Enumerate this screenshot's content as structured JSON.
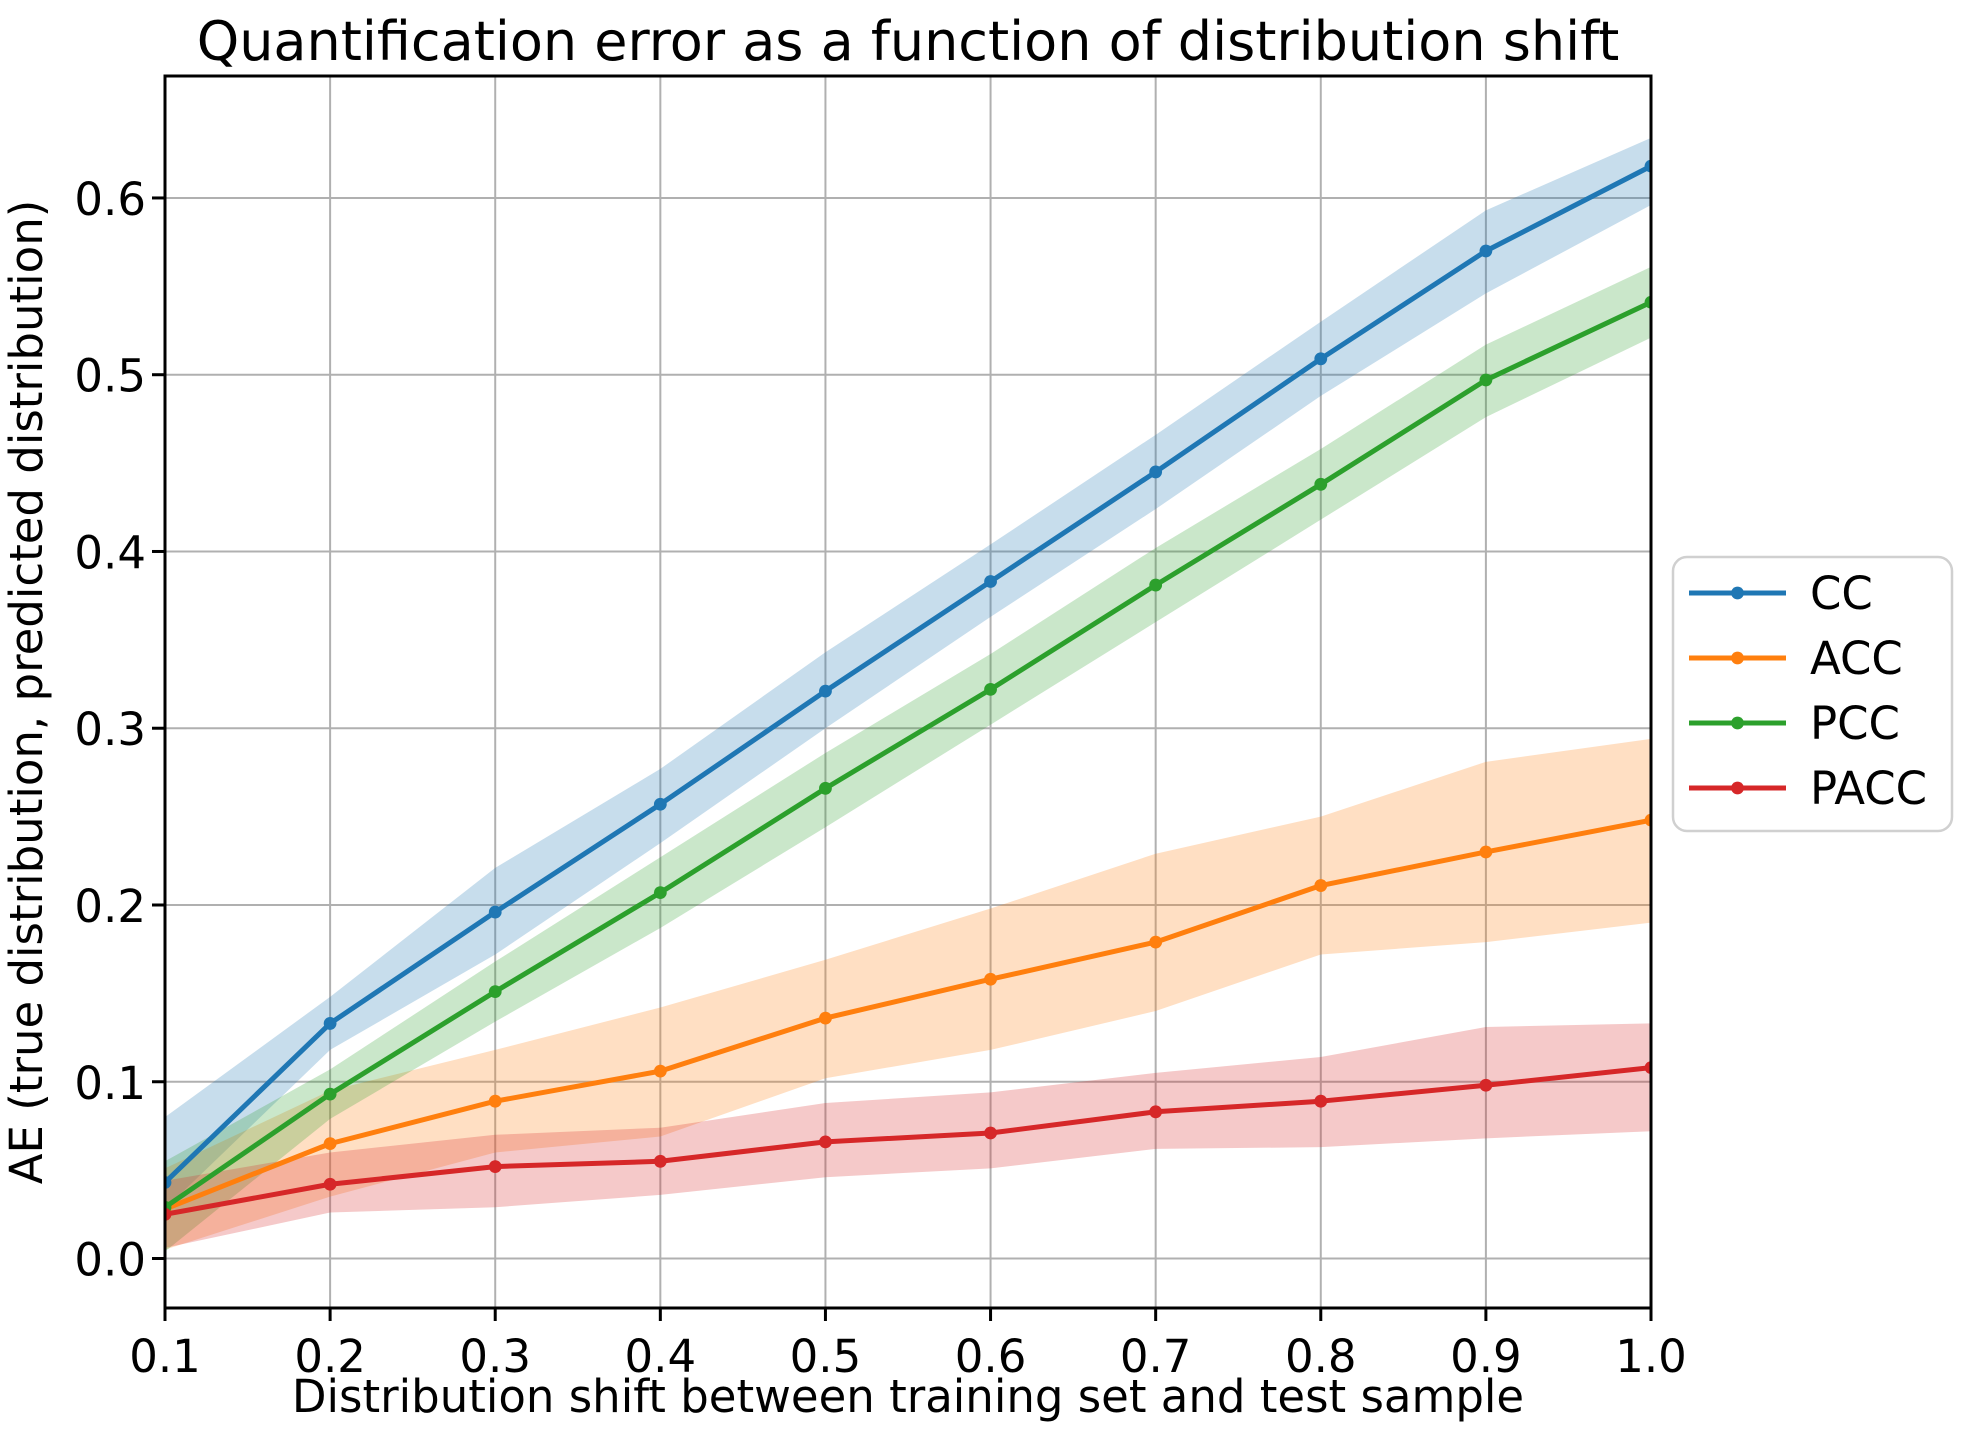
{
  "figure": {
    "title": "Quantification error as a function of distribution shift",
    "xlabel": "Distribution shift between training set and test sample",
    "ylabel": "AE (true distribution, predicted distribution)"
  },
  "chart_data": {
    "type": "line",
    "title": "Quantification error as a function of distribution shift",
    "xlabel": "Distribution shift between training set and test sample",
    "ylabel": "AE (true distribution, predicted distribution)",
    "grid": true,
    "grid_color": "#b0b0b0",
    "background": "#ffffff",
    "band_alpha": 0.25,
    "x": [
      0.1,
      0.2,
      0.3,
      0.4,
      0.5,
      0.6,
      0.7,
      0.8,
      0.9,
      1.0
    ],
    "x_tick_labels": [
      "0.1",
      "0.2",
      "0.3",
      "0.4",
      "0.5",
      "0.6",
      "0.7",
      "0.8",
      "0.9",
      "1.0"
    ],
    "y_ticks": [
      0.0,
      0.1,
      0.2,
      0.3,
      0.4,
      0.5,
      0.6
    ],
    "y_tick_labels": [
      "0.0",
      "0.1",
      "0.2",
      "0.3",
      "0.4",
      "0.5",
      "0.6"
    ],
    "xlim": [
      0.1,
      1.0
    ],
    "ylim": [
      -0.028,
      0.669
    ],
    "legend": {
      "position": "center-right-outside",
      "entries": [
        "CC",
        "ACC",
        "PCC",
        "PACC"
      ],
      "border_color": "#d0d0d0",
      "background": "#ffffff"
    },
    "series": [
      {
        "name": "CC",
        "color": "#1f77b4",
        "values": [
          0.043,
          0.133,
          0.196,
          0.257,
          0.321,
          0.383,
          0.445,
          0.509,
          0.57,
          0.618
        ],
        "band_lower": [
          0.028,
          0.118,
          0.172,
          0.235,
          0.3,
          0.363,
          0.424,
          0.488,
          0.546,
          0.596
        ],
        "band_upper": [
          0.08,
          0.148,
          0.221,
          0.277,
          0.343,
          0.404,
          0.466,
          0.53,
          0.593,
          0.634
        ]
      },
      {
        "name": "ACC",
        "color": "#ff7f0e",
        "values": [
          0.028,
          0.065,
          0.089,
          0.106,
          0.136,
          0.158,
          0.179,
          0.211,
          0.23,
          0.248
        ],
        "band_lower": [
          0.005,
          0.035,
          0.06,
          0.069,
          0.102,
          0.118,
          0.14,
          0.172,
          0.179,
          0.19
        ],
        "band_upper": [
          0.051,
          0.095,
          0.118,
          0.142,
          0.169,
          0.198,
          0.229,
          0.25,
          0.281,
          0.294
        ]
      },
      {
        "name": "PCC",
        "color": "#2ca02c",
        "values": [
          0.029,
          0.093,
          0.151,
          0.207,
          0.266,
          0.322,
          0.381,
          0.438,
          0.497,
          0.541
        ],
        "band_lower": [
          0.004,
          0.079,
          0.134,
          0.187,
          0.244,
          0.302,
          0.36,
          0.418,
          0.476,
          0.521
        ],
        "band_upper": [
          0.055,
          0.107,
          0.168,
          0.227,
          0.286,
          0.342,
          0.402,
          0.458,
          0.517,
          0.561
        ]
      },
      {
        "name": "PACC",
        "color": "#d62728",
        "values": [
          0.025,
          0.042,
          0.052,
          0.055,
          0.066,
          0.071,
          0.083,
          0.089,
          0.098,
          0.108
        ],
        "band_lower": [
          0.006,
          0.026,
          0.029,
          0.036,
          0.046,
          0.051,
          0.062,
          0.063,
          0.068,
          0.072
        ],
        "band_upper": [
          0.044,
          0.06,
          0.07,
          0.074,
          0.088,
          0.094,
          0.105,
          0.114,
          0.131,
          0.133
        ]
      }
    ]
  }
}
